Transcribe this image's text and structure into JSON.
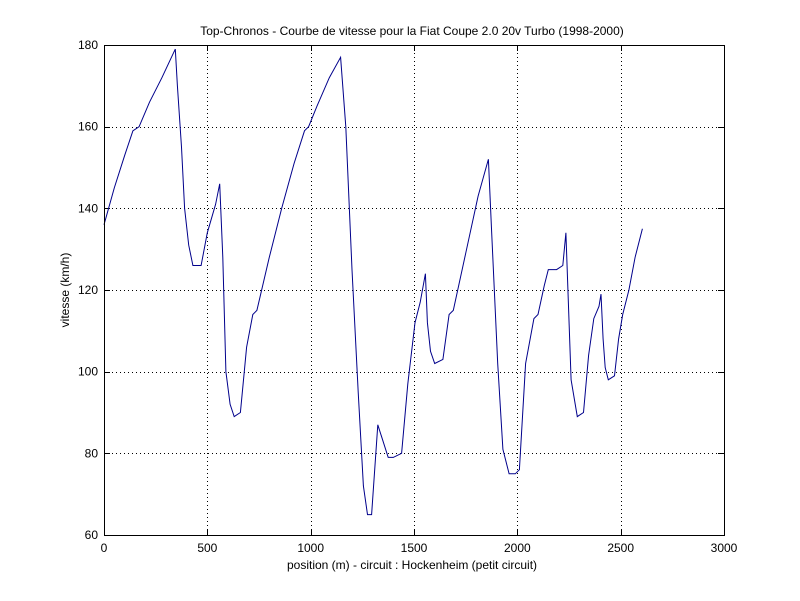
{
  "chart_data": {
    "type": "line",
    "title": "Top-Chronos - Courbe de vitesse pour la Fiat Coupe 2.0 20v Turbo (1998-2000)",
    "xlabel": "position (m) - circuit : Hockenheim (petit circuit)",
    "ylabel": "vitesse (km/h)",
    "xlim": [
      0,
      3000
    ],
    "ylim": [
      60,
      180
    ],
    "xticks": [
      0,
      500,
      1000,
      1500,
      2000,
      2500,
      3000
    ],
    "yticks": [
      60,
      80,
      100,
      120,
      140,
      160,
      180
    ],
    "grid": true,
    "grid_style": "dotted",
    "line_color": "#00008b",
    "series": [
      {
        "x": [
          0,
          50,
          100,
          140,
          170,
          220,
          280,
          345,
          355,
          375,
          390,
          410,
          430,
          470,
          500,
          540,
          560,
          575,
          590,
          610,
          630,
          660,
          690,
          720,
          740,
          800,
          860,
          920,
          970,
          990,
          1030,
          1090,
          1145,
          1170,
          1200,
          1230,
          1255,
          1275,
          1295,
          1325,
          1375,
          1400,
          1440,
          1470,
          1505,
          1530,
          1555,
          1565,
          1580,
          1600,
          1640,
          1670,
          1690,
          1750,
          1810,
          1860,
          1875,
          1905,
          1930,
          1960,
          1990,
          2010,
          2040,
          2080,
          2100,
          2130,
          2150,
          2190,
          2220,
          2235,
          2260,
          2290,
          2320,
          2345,
          2370,
          2395,
          2405,
          2415,
          2425,
          2440,
          2470,
          2490,
          2510,
          2540,
          2570,
          2605
        ],
        "y": [
          136,
          145,
          153,
          159,
          160,
          166,
          172,
          179,
          170,
          155,
          140,
          131,
          126,
          126,
          134,
          141,
          146,
          128,
          100,
          92,
          89,
          90,
          106,
          114,
          115,
          128,
          140,
          151,
          159,
          160,
          165,
          172,
          177,
          160,
          125,
          95,
          72,
          65,
          65,
          87,
          79,
          79,
          80,
          97,
          112,
          117,
          124,
          112,
          105,
          102,
          103,
          114,
          115,
          129,
          143,
          152,
          135,
          102,
          81,
          75,
          75,
          76,
          102,
          113,
          114,
          121,
          125,
          125,
          126,
          134,
          98,
          89,
          90,
          104,
          113,
          116,
          119,
          108,
          101,
          98,
          99,
          108,
          114,
          120,
          128,
          135
        ]
      }
    ]
  }
}
